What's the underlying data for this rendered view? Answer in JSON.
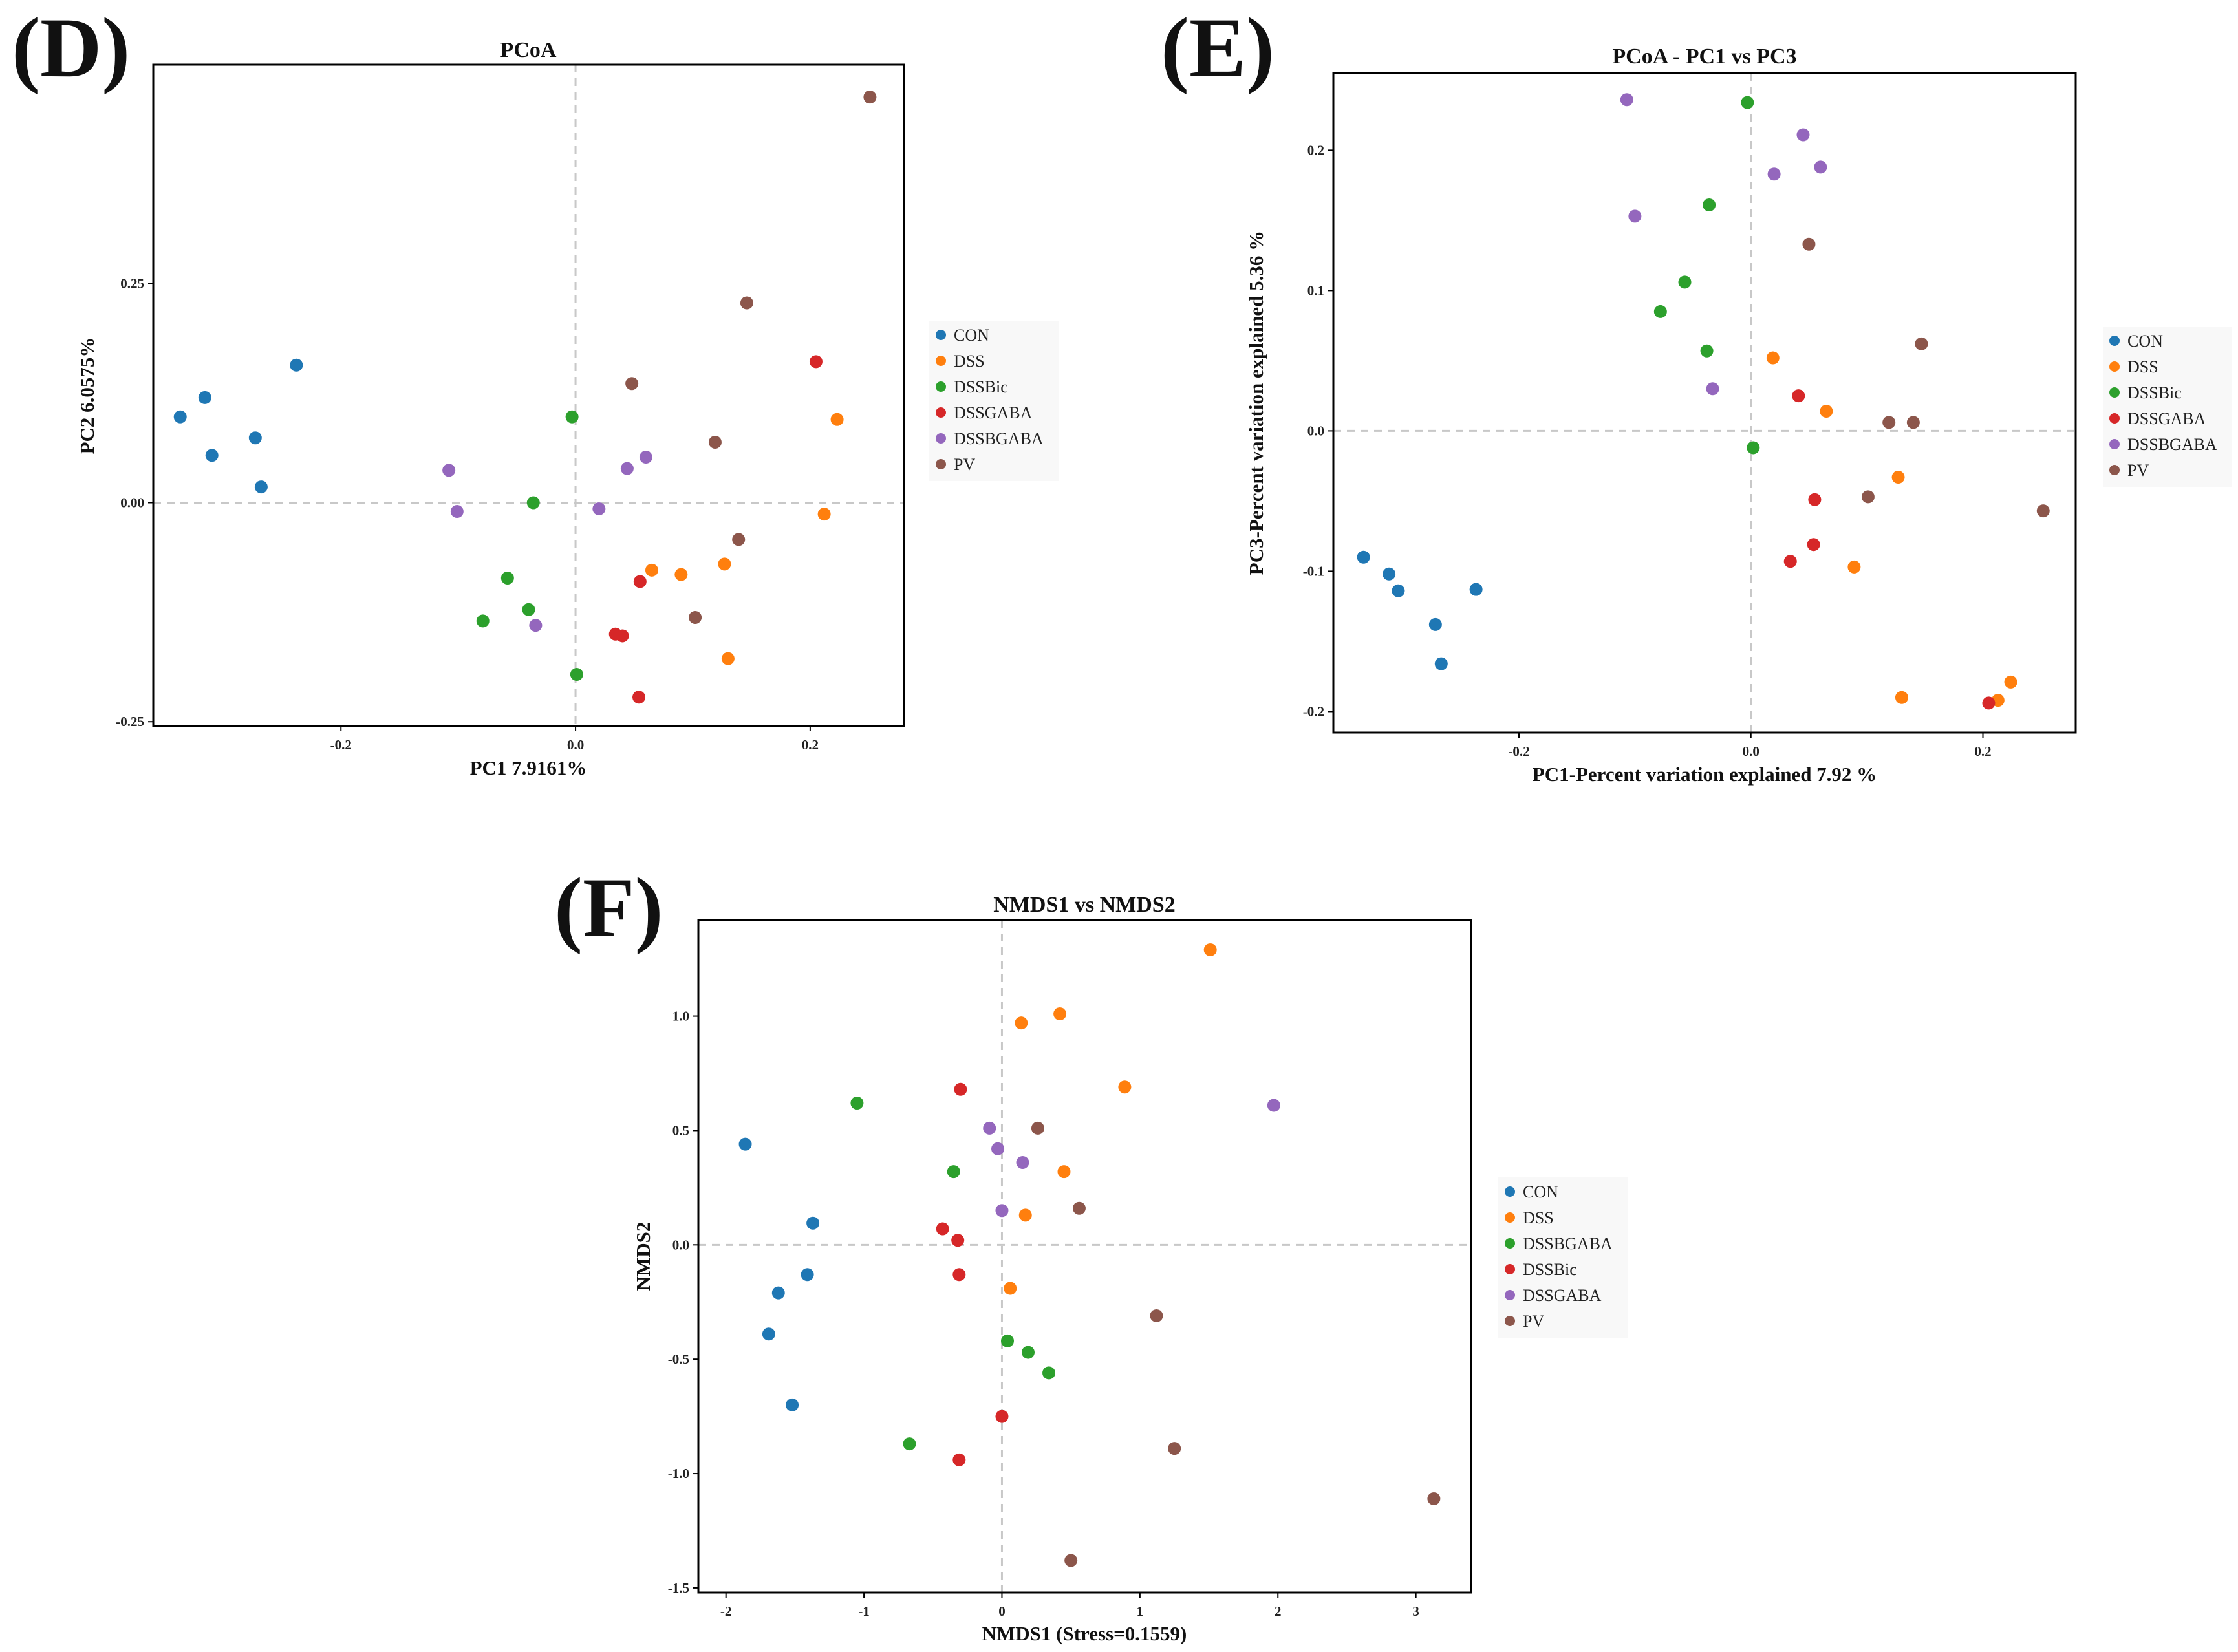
{
  "panels": [
    {
      "label": "(D)"
    },
    {
      "label": "(E)"
    },
    {
      "label": "(F)"
    }
  ],
  "chart_data": [
    {
      "type": "scatter",
      "title": "PCoA",
      "xlabel": "PC1 7.9161%",
      "ylabel": "PC2 6.0575%",
      "xlim": [
        -0.36,
        0.28
      ],
      "ylim": [
        -0.255,
        0.5
      ],
      "xticks": [
        -0.2,
        0.0,
        0.2
      ],
      "xtick_labels": [
        "-0.2",
        "0.0",
        "0.2"
      ],
      "yticks": [
        -0.25,
        0.0,
        0.25
      ],
      "ytick_labels": [
        "-0.25",
        "0.00",
        "0.25"
      ],
      "grid": false,
      "zero_lines": true,
      "legend_position": "right",
      "series": [
        {
          "name": "CON",
          "color": "#1f77b4",
          "points": [
            [
              -0.337,
              0.098
            ],
            [
              -0.316,
              0.12
            ],
            [
              -0.31,
              0.054
            ],
            [
              -0.273,
              0.074
            ],
            [
              -0.268,
              0.018
            ],
            [
              -0.238,
              0.157
            ]
          ]
        },
        {
          "name": "DSS",
          "color": "#ff7f0e",
          "points": [
            [
              0.065,
              -0.077
            ],
            [
              0.09,
              -0.082
            ],
            [
              0.127,
              -0.07
            ],
            [
              0.13,
              -0.178
            ],
            [
              0.212,
              -0.013
            ],
            [
              0.223,
              0.095
            ]
          ]
        },
        {
          "name": "DSSBic",
          "color": "#2ca02c",
          "points": [
            [
              -0.079,
              -0.135
            ],
            [
              -0.058,
              -0.086
            ],
            [
              -0.04,
              -0.122
            ],
            [
              -0.036,
              0.0
            ],
            [
              -0.003,
              0.098
            ],
            [
              0.001,
              -0.196
            ]
          ]
        },
        {
          "name": "DSSGABA",
          "color": "#d62728",
          "points": [
            [
              0.034,
              -0.15
            ],
            [
              0.04,
              -0.152
            ],
            [
              0.055,
              -0.09
            ],
            [
              0.054,
              -0.222
            ],
            [
              0.205,
              0.161
            ]
          ]
        },
        {
          "name": "DSSBGABA",
          "color": "#9467bd",
          "points": [
            [
              -0.108,
              0.037
            ],
            [
              -0.101,
              -0.01
            ],
            [
              -0.034,
              -0.14
            ],
            [
              0.02,
              -0.007
            ],
            [
              0.044,
              0.039
            ],
            [
              0.06,
              0.052
            ]
          ]
        },
        {
          "name": "PV",
          "color": "#8c564b",
          "points": [
            [
              0.048,
              0.136
            ],
            [
              0.102,
              -0.131
            ],
            [
              0.119,
              0.069
            ],
            [
              0.139,
              -0.042
            ],
            [
              0.146,
              0.228
            ],
            [
              0.251,
              0.463
            ]
          ]
        }
      ]
    },
    {
      "type": "scatter",
      "title": "PCoA - PC1 vs PC3",
      "xlabel": "PC1-Percent variation explained 7.92 %",
      "ylabel": "PC3-Percent variation explained 5.36 %",
      "xlim": [
        -0.36,
        0.28
      ],
      "ylim": [
        -0.215,
        0.255
      ],
      "xticks": [
        -0.2,
        0.0,
        0.2
      ],
      "xtick_labels": [
        "-0.2",
        "0.0",
        "0.2"
      ],
      "yticks": [
        -0.2,
        -0.1,
        0.0,
        0.1,
        0.2
      ],
      "ytick_labels": [
        "-0.2",
        "-0.1",
        "0.0",
        "0.1",
        "0.2"
      ],
      "grid": false,
      "zero_lines": true,
      "legend_position": "right",
      "series": [
        {
          "name": "CON",
          "color": "#1f77b4",
          "points": [
            [
              -0.334,
              -0.09
            ],
            [
              -0.312,
              -0.102
            ],
            [
              -0.304,
              -0.114
            ],
            [
              -0.272,
              -0.138
            ],
            [
              -0.267,
              -0.166
            ],
            [
              -0.237,
              -0.113
            ]
          ]
        },
        {
          "name": "DSS",
          "color": "#ff7f0e",
          "points": [
            [
              0.019,
              0.052
            ],
            [
              0.065,
              0.014
            ],
            [
              0.089,
              -0.097
            ],
            [
              0.127,
              -0.033
            ],
            [
              0.13,
              -0.19
            ],
            [
              0.213,
              -0.192
            ],
            [
              0.224,
              -0.179
            ]
          ]
        },
        {
          "name": "DSSBic",
          "color": "#2ca02c",
          "points": [
            [
              -0.078,
              0.085
            ],
            [
              -0.057,
              0.106
            ],
            [
              -0.038,
              0.057
            ],
            [
              -0.036,
              0.161
            ],
            [
              -0.003,
              0.234
            ],
            [
              0.002,
              -0.012
            ]
          ]
        },
        {
          "name": "DSSGABA",
          "color": "#d62728",
          "points": [
            [
              0.034,
              -0.093
            ],
            [
              0.041,
              0.025
            ],
            [
              0.055,
              -0.049
            ],
            [
              0.054,
              -0.081
            ],
            [
              0.205,
              -0.194
            ]
          ]
        },
        {
          "name": "DSSBGABA",
          "color": "#9467bd",
          "points": [
            [
              -0.107,
              0.236
            ],
            [
              -0.1,
              0.153
            ],
            [
              -0.033,
              0.03
            ],
            [
              0.02,
              0.183
            ],
            [
              0.045,
              0.211
            ],
            [
              0.06,
              0.188
            ]
          ]
        },
        {
          "name": "PV",
          "color": "#8c564b",
          "points": [
            [
              0.05,
              0.133
            ],
            [
              0.101,
              -0.047
            ],
            [
              0.119,
              0.006
            ],
            [
              0.14,
              0.006
            ],
            [
              0.147,
              0.062
            ],
            [
              0.252,
              -0.057
            ]
          ]
        }
      ]
    },
    {
      "type": "scatter",
      "title": "NMDS1 vs NMDS2",
      "xlabel": "NMDS1 (Stress=0.1559)",
      "ylabel": "NMDS2",
      "xlim": [
        -2.2,
        3.4
      ],
      "ylim": [
        -1.52,
        1.42
      ],
      "xticks": [
        -2,
        -1,
        0,
        1,
        2,
        3
      ],
      "xtick_labels": [
        "-2",
        "-1",
        "0",
        "1",
        "2",
        "3"
      ],
      "yticks": [
        -1.5,
        -1.0,
        -0.5,
        0.0,
        0.5,
        1.0
      ],
      "ytick_labels": [
        "-1.5",
        "-1.0",
        "-0.5",
        "0.0",
        "0.5",
        "1.0"
      ],
      "grid": false,
      "zero_lines": true,
      "legend_position": "right",
      "series": [
        {
          "name": "CON",
          "color": "#1f77b4",
          "points": [
            [
              -1.86,
              0.44
            ],
            [
              -1.37,
              0.095
            ],
            [
              -1.41,
              -0.13
            ],
            [
              -1.62,
              -0.21
            ],
            [
              -1.69,
              -0.39
            ],
            [
              -1.52,
              -0.7
            ]
          ]
        },
        {
          "name": "DSS",
          "color": "#ff7f0e",
          "points": [
            [
              0.14,
              0.97
            ],
            [
              0.42,
              1.01
            ],
            [
              0.89,
              0.69
            ],
            [
              1.51,
              1.29
            ],
            [
              0.45,
              0.32
            ],
            [
              0.17,
              0.13
            ],
            [
              0.06,
              -0.19
            ]
          ]
        },
        {
          "name": "DSSBGABA",
          "color": "#2ca02c",
          "points": [
            [
              -1.05,
              0.62
            ],
            [
              -0.35,
              0.32
            ],
            [
              0.04,
              -0.42
            ],
            [
              0.19,
              -0.47
            ],
            [
              0.34,
              -0.56
            ],
            [
              -0.67,
              -0.87
            ]
          ]
        },
        {
          "name": "DSSBic",
          "color": "#d62728",
          "points": [
            [
              -0.3,
              0.68
            ],
            [
              -0.43,
              0.07
            ],
            [
              -0.32,
              0.02
            ],
            [
              -0.31,
              -0.13
            ],
            [
              0.0,
              -0.75
            ],
            [
              -0.31,
              -0.94
            ]
          ]
        },
        {
          "name": "DSSGABA",
          "color": "#9467bd",
          "points": [
            [
              -0.09,
              0.51
            ],
            [
              -0.03,
              0.42
            ],
            [
              0.15,
              0.36
            ],
            [
              0.0,
              0.15
            ],
            [
              1.97,
              0.61
            ]
          ]
        },
        {
          "name": "PV",
          "color": "#8c564b",
          "points": [
            [
              0.26,
              0.51
            ],
            [
              0.56,
              0.16
            ],
            [
              1.12,
              -0.31
            ],
            [
              1.25,
              -0.89
            ],
            [
              0.5,
              -1.38
            ],
            [
              3.13,
              -1.11
            ]
          ]
        }
      ]
    }
  ]
}
